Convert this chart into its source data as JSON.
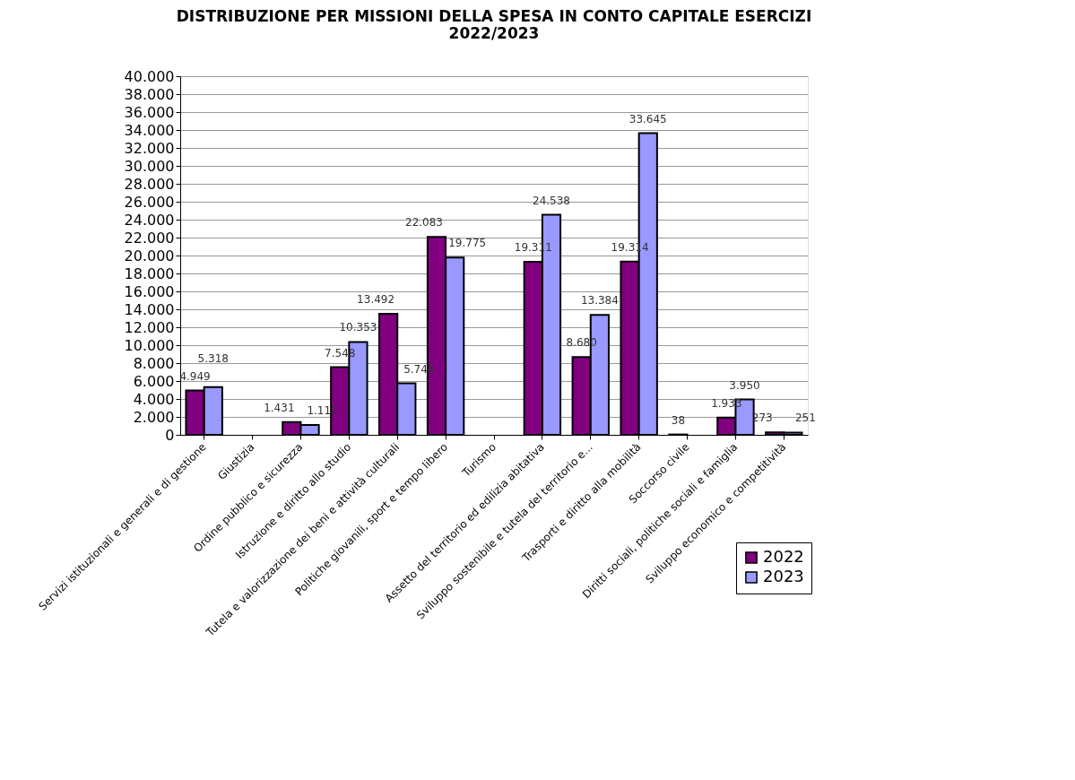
{
  "chart_data": {
    "type": "bar",
    "title": [
      "DISTRIBUZIONE PER MISSIONI DELLA SPESA IN CONTO CAPITALE ESERCIZI",
      "2022/2023"
    ],
    "categories": [
      "Servizi istituzionali e generali e di gestione",
      "Giustizia",
      "Ordine pubblico e sicurezza",
      "Istruzione e diritto allo studio",
      "Tutela e valorizzazione dei beni e attività culturali",
      "Politiche giovanili, sport e tempo libero",
      "Turismo",
      "Assetto del territorio ed edilizia abitativa",
      "Sviluppo sostenibile e tutela del territorio e...",
      "Trasporti e diritto alla mobilità",
      "Soccorso civile",
      "Diritti sociali, politiche sociali e famiglia",
      "Sviluppo economico e competitività"
    ],
    "series": [
      {
        "name": "2022",
        "color": "#800080",
        "values": [
          4949,
          null,
          1431,
          7548,
          13492,
          22083,
          null,
          19311,
          8680,
          19314,
          38,
          1933,
          273
        ],
        "value_labels": [
          "4.949",
          null,
          "1.431",
          "7.548",
          "13.492",
          "22.083",
          null,
          "19.311",
          "8.680",
          "19.314",
          "38",
          "1.933",
          "273"
        ]
      },
      {
        "name": "2023",
        "color": "#9999ff",
        "values": [
          5318,
          null,
          1112,
          10353,
          5746,
          19775,
          null,
          24538,
          13384,
          33645,
          null,
          3950,
          251
        ],
        "value_labels": [
          "5.318",
          null,
          "1.112",
          "10.353",
          "5.746",
          "19.775",
          null,
          "24.538",
          "13.384",
          "33.645",
          null,
          "3.950",
          "251"
        ]
      }
    ],
    "ylim": [
      0,
      40000
    ],
    "yticks": [
      0,
      {
        "value": 2000,
        "label": "2.000"
      },
      {
        "value": 4000,
        "label": "4.000"
      },
      {
        "value": 6000,
        "label": "6.000"
      },
      {
        "value": 8000,
        "label": "8.000"
      },
      {
        "value": 10000,
        "label": "10.000"
      },
      {
        "value": 12000,
        "label": "12.000"
      },
      {
        "value": 14000,
        "label": "14.000"
      },
      {
        "value": 16000,
        "label": "16.000"
      },
      {
        "value": 18000,
        "label": "18.000"
      },
      {
        "value": 20000,
        "label": "20.000"
      },
      {
        "value": 22000,
        "label": "22.000"
      },
      {
        "value": 24000,
        "label": "24.000"
      },
      {
        "value": 26000,
        "label": "26.000"
      },
      {
        "value": 28000,
        "label": "28.000"
      },
      {
        "value": 30000,
        "label": "30.000"
      },
      {
        "value": 32000,
        "label": "32.000"
      },
      {
        "value": 34000,
        "label": "34.000"
      },
      {
        "value": 36000,
        "label": "36.000"
      },
      {
        "value": 38000,
        "label": "38.000"
      },
      {
        "value": 40000,
        "label": "40.000"
      }
    ],
    "grid": "y",
    "legend": "bottom right"
  }
}
